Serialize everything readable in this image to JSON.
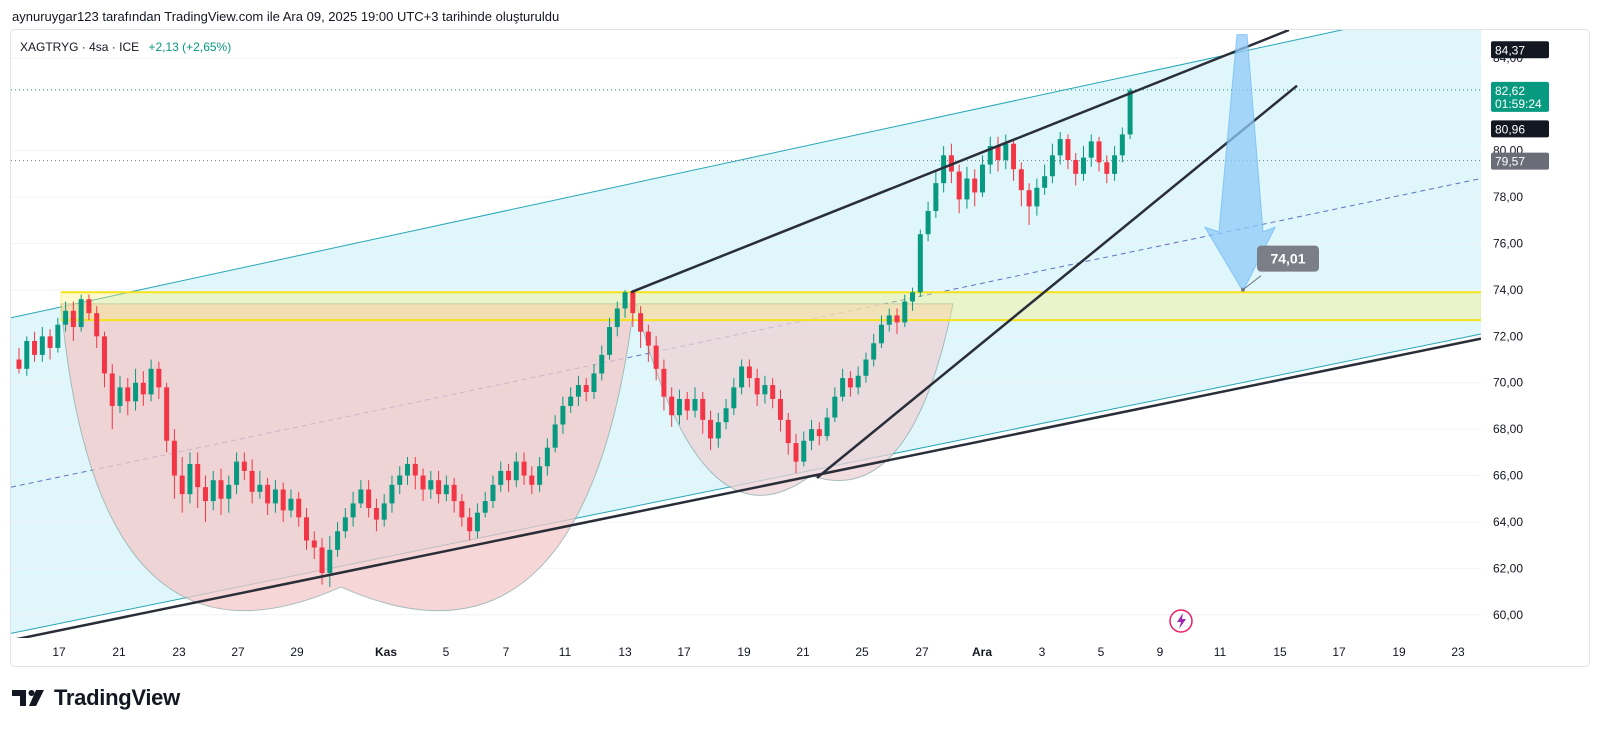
{
  "header": {
    "caption": "aynuruygar123 tarafından TradingView.com ile Ara 09, 2025 19:00 UTC+3 tarihinde oluşturuldu"
  },
  "legend": {
    "symbol": "XAGTRYG · 4sa · ICE",
    "change": "+2,13 (+2,65%)"
  },
  "footer": {
    "brand": "TradingView",
    "logo_icon": "tradingview-logo-icon"
  },
  "colors": {
    "up": "#089981",
    "down": "#f23645",
    "channel_fill": "#dff6fa",
    "channel_line": "#26a6b5",
    "zone": "#fff176",
    "zone_border": "#f5e21b",
    "cup_fill": "#f3c9c9",
    "arrow": "#90caf9",
    "trend": "#2a2e39",
    "midline": "#3f51b5"
  },
  "chart_data": {
    "type": "candlestick",
    "ylim": [
      59,
      85.2
    ],
    "y_ticks": [
      "60,00",
      "62,00",
      "64,00",
      "66,00",
      "68,00",
      "70,00",
      "72,00",
      "74,00",
      "76,00",
      "78,00",
      "80,00",
      "84,00"
    ],
    "x_ticks": [
      "17",
      "21",
      "23",
      "27",
      "29",
      "Kas",
      "5",
      "7",
      "11",
      "13",
      "17",
      "19",
      "21",
      "25",
      "27",
      "Ara",
      "3",
      "5",
      "9",
      "11",
      "15",
      "17",
      "19",
      "23"
    ],
    "price_labels": [
      {
        "value": 84.37,
        "text": "84,37",
        "style": "dark"
      },
      {
        "value": 82.62,
        "text": "82,62",
        "sub": "01:59:24",
        "style": "green"
      },
      {
        "value": 80.96,
        "text": "80,96",
        "style": "dark"
      },
      {
        "value": 79.57,
        "text": "79,57",
        "style": "grey"
      }
    ],
    "target": {
      "value": 74.01,
      "text": "74,01"
    },
    "zone": [
      72.7,
      73.9
    ],
    "last_price": 82.62,
    "candles": [
      [
        71.0,
        70.6,
        71.5,
        70.4
      ],
      [
        70.6,
        71.8,
        72.0,
        70.3
      ],
      [
        71.8,
        71.2,
        72.2,
        70.9
      ],
      [
        71.2,
        72.0,
        72.4,
        70.9
      ],
      [
        72.0,
        71.5,
        72.3,
        71.0
      ],
      [
        71.5,
        72.5,
        72.8,
        71.3
      ],
      [
        72.5,
        73.1,
        73.5,
        72.2
      ],
      [
        73.1,
        72.4,
        73.5,
        71.8
      ],
      [
        72.4,
        73.6,
        73.8,
        72.2
      ],
      [
        73.6,
        73.0,
        73.8,
        72.7
      ],
      [
        73.0,
        72.0,
        73.3,
        71.5
      ],
      [
        72.0,
        70.4,
        72.2,
        69.8
      ],
      [
        70.4,
        69.0,
        70.8,
        68.0
      ],
      [
        69.0,
        69.8,
        70.3,
        68.7
      ],
      [
        69.8,
        69.2,
        70.2,
        68.6
      ],
      [
        69.2,
        70.0,
        70.6,
        68.8
      ],
      [
        70.0,
        69.5,
        70.5,
        69.0
      ],
      [
        69.5,
        70.6,
        71.0,
        69.2
      ],
      [
        70.6,
        69.8,
        70.9,
        69.3
      ],
      [
        69.8,
        67.5,
        70.0,
        67.0
      ],
      [
        67.5,
        66.0,
        68.0,
        65.0
      ],
      [
        66.0,
        65.2,
        66.8,
        64.4
      ],
      [
        65.2,
        66.5,
        67.0,
        64.8
      ],
      [
        66.5,
        65.5,
        67.0,
        64.6
      ],
      [
        65.5,
        64.9,
        66.0,
        64.0
      ],
      [
        64.9,
        65.8,
        66.2,
        64.5
      ],
      [
        65.8,
        65.0,
        66.3,
        64.3
      ],
      [
        65.0,
        65.6,
        66.0,
        64.4
      ],
      [
        65.6,
        66.6,
        67.0,
        65.2
      ],
      [
        66.6,
        66.2,
        67.0,
        65.8
      ],
      [
        66.2,
        65.3,
        66.7,
        64.8
      ],
      [
        65.3,
        65.6,
        66.2,
        65.0
      ],
      [
        65.6,
        64.8,
        65.9,
        64.3
      ],
      [
        64.8,
        65.4,
        65.8,
        64.4
      ],
      [
        65.4,
        64.5,
        65.7,
        64.0
      ],
      [
        64.5,
        65.0,
        65.4,
        64.2
      ],
      [
        65.0,
        64.2,
        65.3,
        63.8
      ],
      [
        64.2,
        63.2,
        64.6,
        62.8
      ],
      [
        63.2,
        62.9,
        63.6,
        62.4
      ],
      [
        62.9,
        61.8,
        63.3,
        61.3
      ],
      [
        61.8,
        62.8,
        63.4,
        61.2
      ],
      [
        62.8,
        63.6,
        64.0,
        62.5
      ],
      [
        63.6,
        64.2,
        64.6,
        63.3
      ],
      [
        64.2,
        64.8,
        65.3,
        63.8
      ],
      [
        64.8,
        65.4,
        65.8,
        64.6
      ],
      [
        65.4,
        64.6,
        65.8,
        64.2
      ],
      [
        64.6,
        64.1,
        65.0,
        63.6
      ],
      [
        64.1,
        64.8,
        65.2,
        63.8
      ],
      [
        64.8,
        65.6,
        66.0,
        64.4
      ],
      [
        65.6,
        66.0,
        66.4,
        65.2
      ],
      [
        66.0,
        66.5,
        66.8,
        65.6
      ],
      [
        66.5,
        66.0,
        66.8,
        65.4
      ],
      [
        66.0,
        65.4,
        66.3,
        64.9
      ],
      [
        65.4,
        65.8,
        66.2,
        65.0
      ],
      [
        65.8,
        65.2,
        66.2,
        64.8
      ],
      [
        65.2,
        65.6,
        66.0,
        64.9
      ],
      [
        65.6,
        64.9,
        65.9,
        64.4
      ],
      [
        64.9,
        64.2,
        65.2,
        63.8
      ],
      [
        64.2,
        63.6,
        64.6,
        63.2
      ],
      [
        63.6,
        64.4,
        64.8,
        63.3
      ],
      [
        64.4,
        64.9,
        65.3,
        64.2
      ],
      [
        64.9,
        65.6,
        66.0,
        64.6
      ],
      [
        65.6,
        66.2,
        66.6,
        65.3
      ],
      [
        66.2,
        65.8,
        66.5,
        65.3
      ],
      [
        65.8,
        66.6,
        67.0,
        65.5
      ],
      [
        66.6,
        66.0,
        67.0,
        65.6
      ],
      [
        66.0,
        65.6,
        66.4,
        65.2
      ],
      [
        65.6,
        66.4,
        66.8,
        65.3
      ],
      [
        66.4,
        67.2,
        67.6,
        66.0
      ],
      [
        67.2,
        68.2,
        68.6,
        67.0
      ],
      [
        68.2,
        69.0,
        69.4,
        67.8
      ],
      [
        69.0,
        69.4,
        69.8,
        68.7
      ],
      [
        69.4,
        69.9,
        70.3,
        69.0
      ],
      [
        69.9,
        69.6,
        70.2,
        69.2
      ],
      [
        69.6,
        70.4,
        70.8,
        69.3
      ],
      [
        70.4,
        71.2,
        71.6,
        70.1
      ],
      [
        71.2,
        72.4,
        72.8,
        71.0
      ],
      [
        72.4,
        73.2,
        73.5,
        72.0
      ],
      [
        73.2,
        73.9,
        74.0,
        72.8
      ],
      [
        73.9,
        73.0,
        74.0,
        72.4
      ],
      [
        73.0,
        72.2,
        73.3,
        71.5
      ],
      [
        72.2,
        71.6,
        72.5,
        70.9
      ],
      [
        71.6,
        70.6,
        72.0,
        70.1
      ],
      [
        70.6,
        69.4,
        71.0,
        68.8
      ],
      [
        69.4,
        68.6,
        69.8,
        68.1
      ],
      [
        68.6,
        69.3,
        69.7,
        68.2
      ],
      [
        69.3,
        68.8,
        69.6,
        68.4
      ],
      [
        68.8,
        69.3,
        69.8,
        68.5
      ],
      [
        69.3,
        68.4,
        69.6,
        67.8
      ],
      [
        68.4,
        67.6,
        68.8,
        67.1
      ],
      [
        67.6,
        68.3,
        68.7,
        67.2
      ],
      [
        68.3,
        68.9,
        69.3,
        68.0
      ],
      [
        68.9,
        69.8,
        70.2,
        68.6
      ],
      [
        69.8,
        70.7,
        71.0,
        69.5
      ],
      [
        70.7,
        70.2,
        71.0,
        69.8
      ],
      [
        70.2,
        69.5,
        70.6,
        69.0
      ],
      [
        69.5,
        69.9,
        70.3,
        69.1
      ],
      [
        69.9,
        69.3,
        70.2,
        68.9
      ],
      [
        69.3,
        68.4,
        69.7,
        67.9
      ],
      [
        68.4,
        67.4,
        68.7,
        66.9
      ],
      [
        67.4,
        66.6,
        67.8,
        66.1
      ],
      [
        66.6,
        67.5,
        67.9,
        66.4
      ],
      [
        67.5,
        68.0,
        68.4,
        67.1
      ],
      [
        68.0,
        67.7,
        68.3,
        67.3
      ],
      [
        67.7,
        68.5,
        68.9,
        67.5
      ],
      [
        68.5,
        69.4,
        69.8,
        68.3
      ],
      [
        69.4,
        70.2,
        70.6,
        69.2
      ],
      [
        70.2,
        69.8,
        70.5,
        69.4
      ],
      [
        69.8,
        70.3,
        70.7,
        69.5
      ],
      [
        70.3,
        71.0,
        71.3,
        70.0
      ],
      [
        71.0,
        71.7,
        72.1,
        70.7
      ],
      [
        71.7,
        72.5,
        72.9,
        71.5
      ],
      [
        72.5,
        72.9,
        73.2,
        72.2
      ],
      [
        72.9,
        72.6,
        73.2,
        72.1
      ],
      [
        72.6,
        73.5,
        73.8,
        72.4
      ],
      [
        73.5,
        73.9,
        74.1,
        73.1
      ],
      [
        73.9,
        76.4,
        76.6,
        73.7
      ],
      [
        76.4,
        77.4,
        77.8,
        76.1
      ],
      [
        77.4,
        78.6,
        79.1,
        77.1
      ],
      [
        78.6,
        79.8,
        80.2,
        78.2
      ],
      [
        79.8,
        79.1,
        80.3,
        78.6
      ],
      [
        79.1,
        77.9,
        79.4,
        77.3
      ],
      [
        77.9,
        78.8,
        79.3,
        77.5
      ],
      [
        78.8,
        78.2,
        79.2,
        77.6
      ],
      [
        78.2,
        79.4,
        79.8,
        78.0
      ],
      [
        79.4,
        80.2,
        80.6,
        79.0
      ],
      [
        80.2,
        79.6,
        80.6,
        79.1
      ],
      [
        79.6,
        80.3,
        80.7,
        79.2
      ],
      [
        80.3,
        79.2,
        80.5,
        78.7
      ],
      [
        79.2,
        78.3,
        79.5,
        77.6
      ],
      [
        78.3,
        77.6,
        78.6,
        76.8
      ],
      [
        77.6,
        78.4,
        78.8,
        77.2
      ],
      [
        78.4,
        78.9,
        79.4,
        78.1
      ],
      [
        78.9,
        79.8,
        80.3,
        78.6
      ],
      [
        79.8,
        80.5,
        80.8,
        79.4
      ],
      [
        80.5,
        79.6,
        80.7,
        79.2
      ],
      [
        79.6,
        79.0,
        79.9,
        78.5
      ],
      [
        79.0,
        79.7,
        80.2,
        78.7
      ],
      [
        79.7,
        80.4,
        80.7,
        79.3
      ],
      [
        80.4,
        79.5,
        80.6,
        79.1
      ],
      [
        79.5,
        79.0,
        79.8,
        78.6
      ],
      [
        79.0,
        79.8,
        80.2,
        78.7
      ],
      [
        79.8,
        80.7,
        81.0,
        79.5
      ],
      [
        80.7,
        82.6,
        82.7,
        80.5
      ]
    ]
  }
}
